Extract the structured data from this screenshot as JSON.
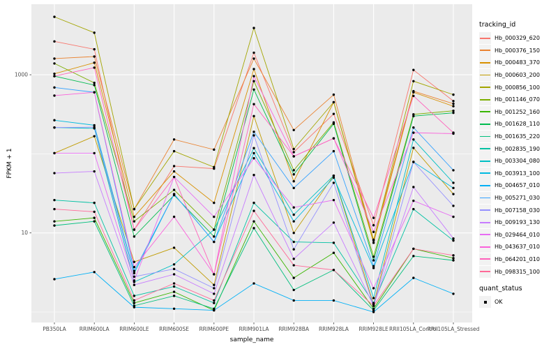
{
  "chart_data": {
    "type": "line",
    "title": "",
    "xlabel": "sample_name",
    "ylabel": "FPKM + 1",
    "y_scale": "log10",
    "ylim": [
      0.75,
      8000
    ],
    "grid": true,
    "panel_bg": "#EBEBEB",
    "grid_color": "#FFFFFF",
    "tick_label_color": "#4D4D4D",
    "point_color": "#000000",
    "legend_position": "right",
    "y_ticks": [
      {
        "label": "1000",
        "value": 1000
      },
      {
        "label": "10",
        "value": 10
      }
    ],
    "y_minor": [
      1,
      100
    ],
    "x_categories": [
      "PB350LA",
      "RRIM600LA",
      "RRIM600LE",
      "RRIM600SE",
      "RRIM600PE",
      "RRIM901LA",
      "RRIM928BA",
      "RRIM928LA",
      "RRIM928LE",
      "RRII105LA_Control",
      "RRII105LA_Stressed"
    ],
    "legend_title": "tracking_id",
    "quant_status": {
      "title": "quant_status",
      "items": [
        "OK"
      ]
    },
    "series": [
      {
        "name": "Hb_000329_620",
        "color": "#F8766D",
        "values": [
          2640,
          2100,
          11,
          70,
          65,
          1900,
          105,
          320,
          12.5,
          1150,
          465
        ]
      },
      {
        "name": "Hb_000376_150",
        "color": "#EA8331",
        "values": [
          1600,
          1700,
          20,
          152,
          113,
          1600,
          200,
          560,
          8.2,
          620,
          430
        ]
      },
      {
        "name": "Hb_000483_370",
        "color": "#D89000",
        "values": [
          1030,
          1420,
          16,
          60,
          24,
          1180,
          45,
          450,
          7.5,
          600,
          400
        ]
      },
      {
        "name": "Hb_000603_200",
        "color": "#C09B00",
        "values": [
          102,
          167,
          4.3,
          6.5,
          2.2,
          300,
          10,
          53,
          1.25,
          119,
          31
        ]
      },
      {
        "name": "Hb_000856_100",
        "color": "#A3A500",
        "values": [
          5400,
          3400,
          20,
          108,
          68,
          3900,
          115,
          450,
          8,
          830,
          560
        ]
      },
      {
        "name": "Hb_001146_070",
        "color": "#7CAE00",
        "values": [
          1390,
          790,
          14,
          35,
          11,
          830,
          62,
          250,
          5,
          316,
          350
        ]
      },
      {
        "name": "Hb_001252_160",
        "color": "#39B600",
        "values": [
          14,
          15.5,
          1.3,
          1.8,
          1.05,
          14,
          2.7,
          5.6,
          1.1,
          6.3,
          4.8
        ]
      },
      {
        "name": "Hb_001628_110",
        "color": "#00BB4E",
        "values": [
          960,
          740,
          9,
          30,
          9,
          650,
          55,
          240,
          4.5,
          300,
          330
        ]
      },
      {
        "name": "Hb_001635_220",
        "color": "#00BF7D",
        "values": [
          12.4,
          14,
          1.2,
          1.6,
          1.1,
          11.5,
          1.9,
          3.4,
          1.05,
          5.1,
          4.5
        ]
      },
      {
        "name": "Hb_002835_190",
        "color": "#00C1A3",
        "values": [
          26,
          24,
          1.6,
          2.1,
          1.3,
          24,
          7.7,
          7.5,
          1.3,
          20,
          8
        ]
      },
      {
        "name": "Hb_003304_080",
        "color": "#00BFC4",
        "values": [
          215,
          210,
          2.4,
          4.0,
          11,
          118,
          17,
          53,
          1.5,
          152,
          43
        ]
      },
      {
        "name": "Hb_003913_100",
        "color": "#00BAE0",
        "values": [
          266,
          230,
          3.1,
          31,
          7.7,
          102,
          14,
          50,
          3.6,
          79,
          37
        ]
      },
      {
        "name": "Hb_004657_010",
        "color": "#00B0F6",
        "values": [
          2.6,
          3.2,
          1.15,
          1.1,
          1.05,
          2.3,
          1.4,
          1.4,
          1.0,
          2.7,
          1.7
        ]
      },
      {
        "name": "Hb_005271_030",
        "color": "#35A2FF",
        "values": [
          690,
          600,
          3.3,
          31,
          7.7,
          190,
          37,
          108,
          3.8,
          215,
          62
        ]
      },
      {
        "name": "Hb_007158_030",
        "color": "#9590FF",
        "values": [
          215,
          218,
          2.8,
          3.5,
          2.0,
          171,
          6.2,
          43,
          1.2,
          79,
          22
        ]
      },
      {
        "name": "Hb_009193_130",
        "color": "#C77CFF",
        "values": [
          57,
          60,
          2.2,
          3.0,
          1.7,
          54,
          4.7,
          13.5,
          1.2,
          38,
          8.5
        ]
      },
      {
        "name": "Hb_029464_010",
        "color": "#E76BF3",
        "values": [
          102,
          102,
          2.5,
          51,
          16,
          88,
          21,
          26,
          2.0,
          25.5,
          16
        ]
      },
      {
        "name": "Hb_043637_010",
        "color": "#FA62DB",
        "values": [
          545,
          600,
          3.7,
          16,
          3.0,
          960,
          93,
          157,
          10.3,
          185,
          180
        ]
      },
      {
        "name": "Hb_064201_010",
        "color": "#FF62BC",
        "values": [
          960,
          1230,
          11,
          51,
          3.0,
          425,
          93,
          157,
          15.5,
          540,
          185
        ]
      },
      {
        "name": "Hb_098315_100",
        "color": "#FF6A98",
        "values": [
          20,
          18.5,
          1.4,
          2.3,
          1.4,
          19,
          3.9,
          3.4,
          1.2,
          6.3,
          5.2
        ]
      }
    ]
  }
}
